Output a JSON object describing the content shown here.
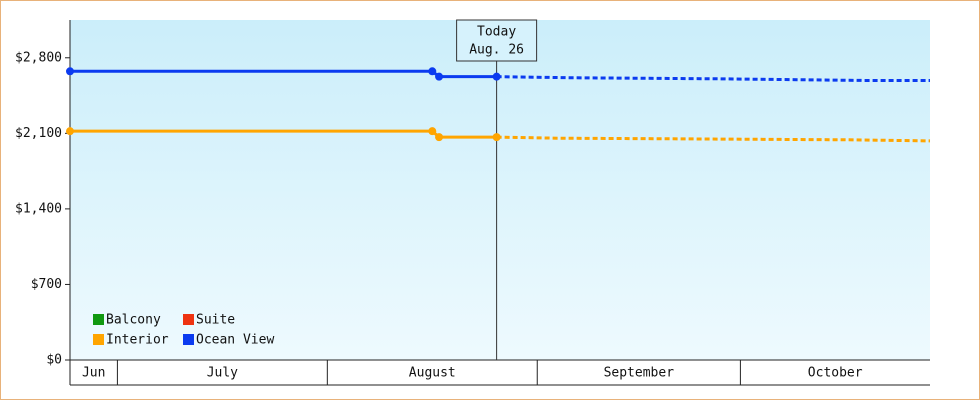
{
  "chart_data": {
    "type": "line",
    "xlim": [
      0,
      127
    ],
    "ylim": [
      0,
      3150
    ],
    "yticks": [
      {
        "value": 0,
        "label": "$0"
      },
      {
        "value": 700,
        "label": "$700"
      },
      {
        "value": 1400,
        "label": "$1,400"
      },
      {
        "value": 2100,
        "label": "$2,100"
      },
      {
        "value": 2800,
        "label": "$2,800"
      }
    ],
    "months": [
      {
        "label": "Jun",
        "start": 0,
        "end": 7
      },
      {
        "label": "July",
        "start": 7,
        "end": 38
      },
      {
        "label": "August",
        "start": 38,
        "end": 69
      },
      {
        "label": "September",
        "start": 69,
        "end": 99
      },
      {
        "label": "October",
        "start": 99,
        "end": 127
      }
    ],
    "today": {
      "x": 63,
      "label": "Today",
      "date": "Aug. 26"
    },
    "series": [
      {
        "name": "Balcony",
        "color": "#119911",
        "x": [],
        "values": []
      },
      {
        "name": "Suite",
        "color": "#ee3311",
        "x": [],
        "values": []
      },
      {
        "name": "Interior",
        "color": "#ffa500",
        "x": [
          0,
          53.5,
          54.5,
          63,
          72,
          87,
          115,
          127
        ],
        "values": [
          2120,
          2120,
          2065,
          2065,
          2055,
          2050,
          2040,
          2030
        ]
      },
      {
        "name": "Ocean View",
        "color": "#0b3bf0",
        "x": [
          0,
          53.5,
          54.5,
          63,
          74,
          96,
          117,
          127
        ],
        "values": [
          2675,
          2675,
          2625,
          2625,
          2615,
          2605,
          2590,
          2590
        ]
      }
    ]
  }
}
